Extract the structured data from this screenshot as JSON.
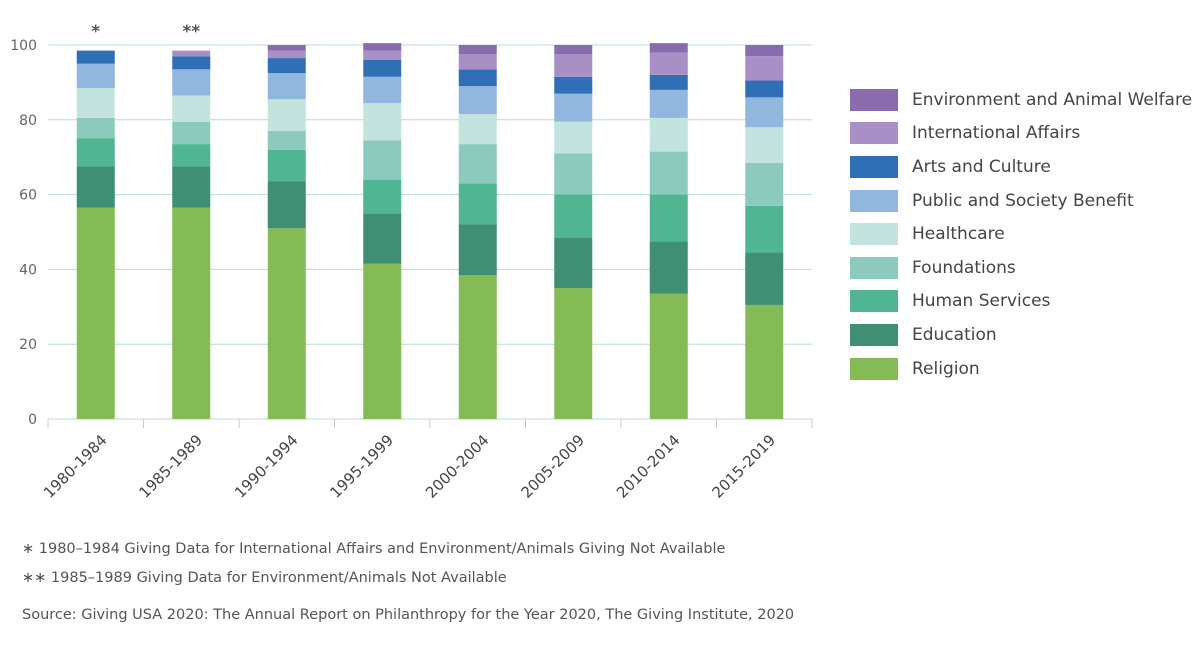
{
  "chart_data": {
    "type": "bar",
    "stacked": true,
    "categories": [
      "1980-1984",
      "1985-1989",
      "1990-1994",
      "1995-1999",
      "2000-2004",
      "2005-2009",
      "2010-2014",
      "2015-2019"
    ],
    "category_markers": [
      "*",
      "**",
      "",
      "",
      "",
      "",
      "",
      ""
    ],
    "ylim": [
      0,
      100
    ],
    "yticks": [
      0,
      20,
      40,
      60,
      80,
      100
    ],
    "grid": true,
    "legend_position": "right",
    "series": [
      {
        "name": "Religion",
        "color": "#84bb55",
        "values": [
          56.5,
          56.5,
          51,
          41.5,
          38.5,
          35,
          33.5,
          30.5
        ]
      },
      {
        "name": "Education",
        "color": "#3e8f73",
        "values": [
          11,
          11,
          12.5,
          13.5,
          13.5,
          13.5,
          14,
          14
        ]
      },
      {
        "name": "Human Services",
        "color": "#4fb592",
        "values": [
          7.5,
          6,
          8.5,
          9,
          11,
          11.5,
          12.5,
          12.5
        ]
      },
      {
        "name": "Foundations",
        "color": "#8dcabe",
        "values": [
          5.5,
          6,
          5,
          10.5,
          10.5,
          11,
          11.5,
          11.5
        ]
      },
      {
        "name": "Healthcare",
        "color": "#c3e3de",
        "values": [
          8,
          7,
          8.5,
          10,
          8,
          8.5,
          9,
          9.5
        ]
      },
      {
        "name": "Public and Society Benefit",
        "color": "#92b7df",
        "values": [
          6.5,
          7,
          7,
          7,
          7.5,
          7.5,
          7.5,
          8
        ]
      },
      {
        "name": "Arts and Culture",
        "color": "#2f6fb5",
        "values": [
          3.5,
          3.5,
          4,
          4.5,
          4.5,
          4.5,
          4,
          4.5
        ]
      },
      {
        "name": "International Affairs",
        "color": "#a88fc6",
        "values": [
          0,
          1.5,
          2,
          2.5,
          4,
          6,
          6,
          6.5
        ]
      },
      {
        "name": "Environment and Animal Welfare",
        "color": "#8a6cae",
        "values": [
          0,
          0,
          1.5,
          2,
          2.5,
          2.5,
          2.5,
          3
        ]
      }
    ]
  },
  "legend_order": [
    "Environment and Animal Welfare",
    "International Affairs",
    "Arts and Culture",
    "Public and Society Benefit",
    "Healthcare",
    "Foundations",
    "Human Services",
    "Education",
    "Religion"
  ],
  "footnotes": {
    "note1": "∗ 1980–1984 Giving Data for International Affairs and Environment/Animals Giving Not Available",
    "note2": "∗∗ 1985–1989 Giving Data for Environment/Animals Not Available",
    "source": "Source: Giving USA 2020: The Annual Report on Philanthropy for the Year 2020, The Giving Institute, 2020"
  }
}
